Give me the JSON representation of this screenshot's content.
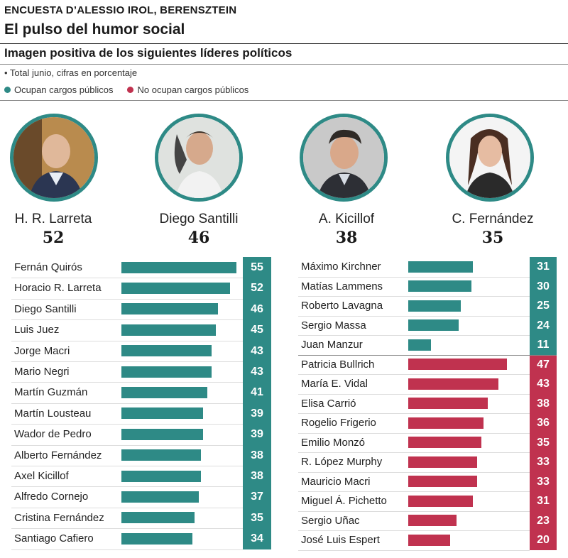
{
  "header": {
    "kicker": "ENCUESTA D’ALESSIO IROL, BERENSZTEIN",
    "title": "El pulso del humor social",
    "subtitle": "Imagen positiva de los siguientes líderes políticos",
    "note": "• Total junio, cifras en porcentaje"
  },
  "legend": {
    "in_office": "Ocupan cargos públicos",
    "not_in_office": "No ocupan cargos públicos"
  },
  "colors": {
    "in_office": "#2e8a86",
    "not_in_office": "#c0324f"
  },
  "featured": [
    {
      "name": "H. R. Larreta",
      "value": "52",
      "icon": "portrait-larreta"
    },
    {
      "name": "Diego Santilli",
      "value": "46",
      "icon": "portrait-santilli"
    },
    {
      "name": "A. Kicillof",
      "value": "38",
      "icon": "portrait-kicillof"
    },
    {
      "name": "C. Fernández",
      "value": "35",
      "icon": "portrait-fernandez"
    }
  ],
  "chart_data": {
    "type": "bar",
    "orientation": "horizontal",
    "value_unit": "%",
    "left_panel": [
      {
        "name": "Fernán Quirós",
        "value": 55,
        "group": "in_office"
      },
      {
        "name": "Horacio R. Larreta",
        "value": 52,
        "group": "in_office"
      },
      {
        "name": "Diego Santilli",
        "value": 46,
        "group": "in_office"
      },
      {
        "name": "Luis Juez",
        "value": 45,
        "group": "in_office"
      },
      {
        "name": "Jorge Macri",
        "value": 43,
        "group": "in_office"
      },
      {
        "name": "Mario Negri",
        "value": 43,
        "group": "in_office"
      },
      {
        "name": "Martín Guzmán",
        "value": 41,
        "group": "in_office"
      },
      {
        "name": "Martín Lousteau",
        "value": 39,
        "group": "in_office"
      },
      {
        "name": "Wador de Pedro",
        "value": 39,
        "group": "in_office"
      },
      {
        "name": "Alberto Fernández",
        "value": 38,
        "group": "in_office"
      },
      {
        "name": "Axel Kicillof",
        "value": 38,
        "group": "in_office"
      },
      {
        "name": "Alfredo Cornejo",
        "value": 37,
        "group": "in_office"
      },
      {
        "name": "Cristina Fernández",
        "value": 35,
        "group": "in_office"
      },
      {
        "name": "Santiago Cafiero",
        "value": 34,
        "group": "in_office"
      }
    ],
    "right_panel": [
      {
        "name": "Máximo Kirchner",
        "value": 31,
        "group": "in_office"
      },
      {
        "name": "Matías Lammens",
        "value": 30,
        "group": "in_office"
      },
      {
        "name": "Roberto Lavagna",
        "value": 25,
        "group": "in_office"
      },
      {
        "name": "Sergio Massa",
        "value": 24,
        "group": "in_office"
      },
      {
        "name": "Juan Manzur",
        "value": 11,
        "group": "in_office"
      },
      {
        "name": "Patricia Bullrich",
        "value": 47,
        "group": "not_in_office"
      },
      {
        "name": "María E. Vidal",
        "value": 43,
        "group": "not_in_office"
      },
      {
        "name": "Elisa Carrió",
        "value": 38,
        "group": "not_in_office"
      },
      {
        "name": "Rogelio Frigerio",
        "value": 36,
        "group": "not_in_office"
      },
      {
        "name": "Emilio Monzó",
        "value": 35,
        "group": "not_in_office"
      },
      {
        "name": "R. López Murphy",
        "value": 33,
        "group": "not_in_office"
      },
      {
        "name": "Mauricio Macri",
        "value": 33,
        "group": "not_in_office"
      },
      {
        "name": "Miguel Á. Pichetto",
        "value": 31,
        "group": "not_in_office"
      },
      {
        "name": "Sergio Uñac",
        "value": 23,
        "group": "not_in_office"
      },
      {
        "name": "José Luis Espert",
        "value": 20,
        "group": "not_in_office"
      }
    ]
  }
}
